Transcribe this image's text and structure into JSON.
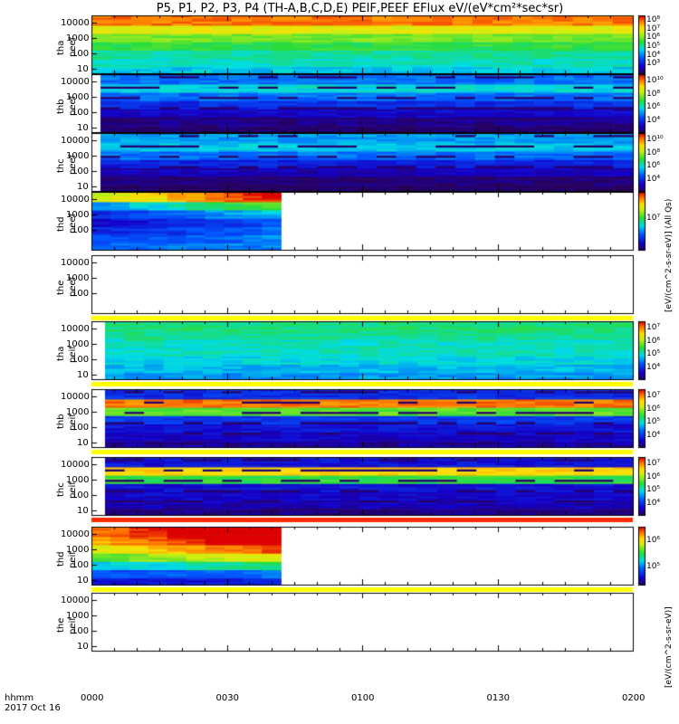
{
  "title": "P5, P1, P2, P3, P4 (TH-A,B,C,D,E) PEIF,PEEF EFlux eV/(eV*cm²*sec*sr)",
  "colorbar_units_top": "[eV/(cm^2-s-sr-eV)] (All Qs)",
  "colorbar_units_bottom": "[eV/(cm^2-s-sr-eV)]",
  "xaxis": {
    "ticks": [
      "0000",
      "0030",
      "0100",
      "0130",
      "0200"
    ],
    "label_line1": "hhmm",
    "label_line2": "2017 Oct 16"
  },
  "chart_data": {
    "type": "heatmap",
    "x_range_minutes": [
      0,
      120
    ],
    "y_scale": "log",
    "ylim": [
      5,
      30000
    ],
    "panels": [
      {
        "label": "tha peef",
        "ytick_labels": [
          "10",
          "100",
          "1000",
          "10000"
        ],
        "cbar_labels": [
          "10³",
          "10⁴",
          "10⁵",
          "10⁶",
          "10⁷",
          "10⁸"
        ],
        "data_start_min": 0,
        "data_end_min": 120,
        "hues": [
          0.4,
          0.45,
          0.48,
          0.55,
          0.62,
          0.74,
          0.9
        ],
        "dark_band": false
      },
      {
        "label": "thb peef",
        "ytick_labels": [
          "10",
          "100",
          "1000",
          "10000"
        ],
        "cbar_labels": [
          "10⁴",
          "10⁶",
          "10⁸",
          "10¹⁰"
        ],
        "data_start_min": 2,
        "data_end_min": 120,
        "hues": [
          0.02,
          0.05,
          0.12,
          0.2,
          0.3,
          0.42,
          0.3
        ],
        "dark_band": true
      },
      {
        "label": "thc peef",
        "ytick_labels": [
          "10",
          "100",
          "1000",
          "10000"
        ],
        "cbar_labels": [
          "10⁴",
          "10⁶",
          "10⁸",
          "10¹⁰"
        ],
        "data_start_min": 2,
        "data_end_min": 120,
        "hues": [
          0.01,
          0.03,
          0.1,
          0.18,
          0.3,
          0.4,
          0.35
        ],
        "dark_band": true
      },
      {
        "label": "thd peef",
        "ytick_labels": [
          "100",
          "1000",
          "10000"
        ],
        "cbar_labels": [
          "10⁷"
        ],
        "data_start_min": 0,
        "data_end_min": 42,
        "hues": [
          0.3,
          0.25,
          0.18,
          0.12,
          0.2,
          0.35,
          0.7
        ],
        "dark_band": false
      },
      {
        "label": "the peef",
        "ytick_labels": [
          "100",
          "1000",
          "10000"
        ],
        "cbar_labels": [],
        "data_start_min": null,
        "data_end_min": null,
        "hues": [],
        "dark_band": false
      },
      {
        "label": "tha peif",
        "ytick_labels": [
          "10",
          "100",
          "1000",
          "10000"
        ],
        "cbar_labels": [
          "10⁴",
          "10⁵",
          "10⁶",
          "10⁷"
        ],
        "data_start_min": 3,
        "data_end_min": 120,
        "hues": [
          0.35,
          0.38,
          0.42,
          0.45,
          0.45,
          0.48,
          0.5
        ],
        "dark_band": false
      },
      {
        "label": "thb peif",
        "ytick_labels": [
          "10",
          "100",
          "1000",
          "10000"
        ],
        "cbar_labels": [
          "10⁴",
          "10⁵",
          "10⁶",
          "10⁷"
        ],
        "data_start_min": 3,
        "data_end_min": 120,
        "hues": [
          0.08,
          0.12,
          0.15,
          0.22,
          0.6,
          0.9,
          0.2
        ],
        "dark_band": true
      },
      {
        "label": "thc peif",
        "ytick_labels": [
          "10",
          "100",
          "1000",
          "10000"
        ],
        "cbar_labels": [
          "10⁴",
          "10⁵",
          "10⁶",
          "10⁷"
        ],
        "data_start_min": 3,
        "data_end_min": 120,
        "hues": [
          0.05,
          0.1,
          0.12,
          0.15,
          0.55,
          0.8,
          0.15
        ],
        "dark_band": true
      },
      {
        "label": "thd peif",
        "ytick_labels": [
          "10",
          "100",
          "1000",
          "10000"
        ],
        "cbar_labels": [
          "10⁵",
          "10⁶"
        ],
        "data_start_min": 0,
        "data_end_min": 42,
        "hues": [
          0.15,
          0.25,
          0.4,
          0.6,
          0.75,
          0.85,
          0.9
        ],
        "dark_band": false
      },
      {
        "label": "the peif",
        "ytick_labels": [
          "10",
          "100",
          "1000",
          "10000"
        ],
        "cbar_labels": [],
        "data_start_min": null,
        "data_end_min": null,
        "hues": [],
        "dark_band": false
      }
    ]
  }
}
